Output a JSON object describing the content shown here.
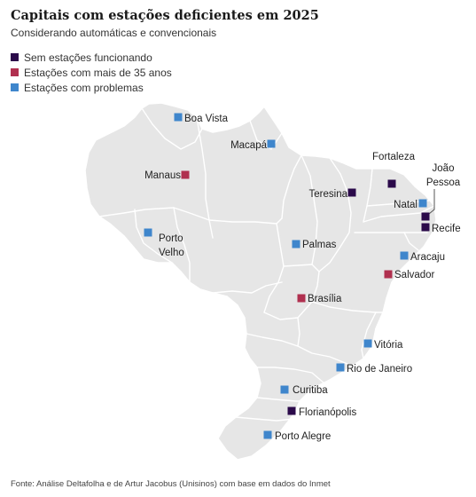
{
  "title": "Capitais com estações deficientes em 2025",
  "subtitle": "Considerando automáticas e convencionais",
  "colors": {
    "none_working": "#2b0a4a",
    "over_35": "#b0304f",
    "problems": "#3f86cc",
    "land": "#e6e6e6",
    "borders": "#ffffff"
  },
  "legend": [
    {
      "key": "none_working",
      "label": "Sem estações funcionando"
    },
    {
      "key": "over_35",
      "label": "Estações com mais de 35 anos"
    },
    {
      "key": "problems",
      "label": "Estações com problemas"
    }
  ],
  "cities": [
    {
      "id": "boa-vista",
      "lines": [
        "Boa Vista"
      ],
      "category": "problems"
    },
    {
      "id": "macapa",
      "lines": [
        "Macapá"
      ],
      "category": "problems"
    },
    {
      "id": "manaus",
      "lines": [
        "Manaus"
      ],
      "category": "over_35"
    },
    {
      "id": "fortaleza",
      "lines": [
        "Fortaleza"
      ],
      "category": "none_working"
    },
    {
      "id": "joao-pessoa",
      "lines": [
        "João",
        "Pessoa"
      ],
      "category": "none_working"
    },
    {
      "id": "teresina",
      "lines": [
        "Teresina"
      ],
      "category": "none_working"
    },
    {
      "id": "natal",
      "lines": [
        "Natal"
      ],
      "category": "problems"
    },
    {
      "id": "recife",
      "lines": [
        "Recife"
      ],
      "category": "none_working"
    },
    {
      "id": "porto-velho",
      "lines": [
        "Porto",
        "Velho"
      ],
      "category": "problems"
    },
    {
      "id": "palmas",
      "lines": [
        "Palmas"
      ],
      "category": "problems"
    },
    {
      "id": "aracaju",
      "lines": [
        "Aracaju"
      ],
      "category": "problems"
    },
    {
      "id": "salvador",
      "lines": [
        "Salvador"
      ],
      "category": "over_35"
    },
    {
      "id": "brasilia",
      "lines": [
        "Brasília"
      ],
      "category": "over_35"
    },
    {
      "id": "vitoria",
      "lines": [
        "Vitória"
      ],
      "category": "problems"
    },
    {
      "id": "rio-de-janeiro",
      "lines": [
        "Rio de Janeiro"
      ],
      "category": "problems"
    },
    {
      "id": "curitiba",
      "lines": [
        "Curitiba"
      ],
      "category": "problems"
    },
    {
      "id": "florianopolis",
      "lines": [
        "Florianópolis"
      ],
      "category": "none_working"
    },
    {
      "id": "porto-alegre",
      "lines": [
        "Porto Alegre"
      ],
      "category": "problems"
    }
  ],
  "source": "Fonte: Análise Deltafolha e de Artur Jacobus (Unisinos) com base em dados do Inmet"
}
